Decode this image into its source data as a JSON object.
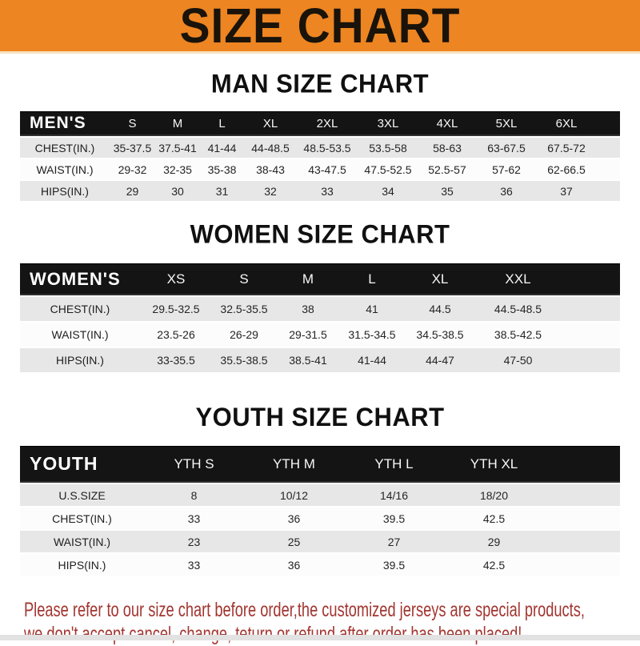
{
  "banner": {
    "title": "SIZE CHART"
  },
  "sections": [
    {
      "key": "men",
      "title": "MAN SIZE CHART",
      "table_label": "MEN'S",
      "columns": [
        "S",
        "M",
        "L",
        "XL",
        "2XL",
        "3XL",
        "4XL",
        "5XL",
        "6XL"
      ],
      "rows": [
        {
          "label": "CHEST(IN.)",
          "values": [
            "35-37.5",
            "37.5-41",
            "41-44",
            "44-48.5",
            "48.5-53.5",
            "53.5-58",
            "58-63",
            "63-67.5",
            "67.5-72"
          ]
        },
        {
          "label": "WAIST(IN.)",
          "values": [
            "29-32",
            "32-35",
            "35-38",
            "38-43",
            "43-47.5",
            "47.5-52.5",
            "52.5-57",
            "57-62",
            "62-66.5"
          ]
        },
        {
          "label": "HIPS(IN.)",
          "values": [
            "29",
            "30",
            "31",
            "32",
            "33",
            "34",
            "35",
            "36",
            "37"
          ]
        }
      ]
    },
    {
      "key": "women",
      "title": "WOMEN SIZE CHART",
      "table_label": "WOMEN'S",
      "columns": [
        "XS",
        "S",
        "M",
        "L",
        "XL",
        "XXL"
      ],
      "rows": [
        {
          "label": "CHEST(IN.)",
          "values": [
            "29.5-32.5",
            "32.5-35.5",
            "38",
            "41",
            "44.5",
            "44.5-48.5"
          ]
        },
        {
          "label": "WAIST(IN.)",
          "values": [
            "23.5-26",
            "26-29",
            "29-31.5",
            "31.5-34.5",
            "34.5-38.5",
            "38.5-42.5"
          ]
        },
        {
          "label": "HIPS(IN.)",
          "values": [
            "33-35.5",
            "35.5-38.5",
            "38.5-41",
            "41-44",
            "44-47",
            "47-50"
          ]
        }
      ]
    },
    {
      "key": "youth",
      "title": "YOUTH SIZE CHART",
      "table_label": "YOUTH",
      "columns": [
        "YTH S",
        "YTH M",
        "YTH L",
        "YTH XL"
      ],
      "rows": [
        {
          "label": "U.S.SIZE",
          "values": [
            "8",
            "10/12",
            "14/16",
            "18/20"
          ]
        },
        {
          "label": "CHEST(IN.)",
          "values": [
            "33",
            "36",
            "39.5",
            "42.5"
          ]
        },
        {
          "label": "WAIST(IN.)",
          "values": [
            "23",
            "25",
            "27",
            "29"
          ]
        },
        {
          "label": "HIPS(IN.)",
          "values": [
            "33",
            "36",
            "39.5",
            "42.5"
          ]
        }
      ]
    }
  ],
  "footer": {
    "line1": "Please refer to our size chart before order,the customized jerseys are special products,",
    "line2": "we don't accept cancel, change, teturn or refund after order has been placed!"
  },
  "colors": {
    "banner_bg": "#ED8522",
    "header_bar_bg": "#141414",
    "row_stripe": "#E7E7E7",
    "footer_text": "#A23530"
  }
}
